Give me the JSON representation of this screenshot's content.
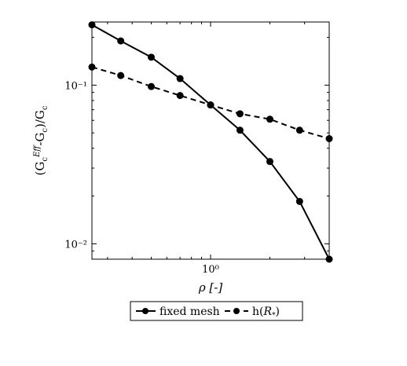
{
  "chart_data": {
    "type": "line",
    "xlabel": "ρ [-]",
    "ylabel": "(G_c^Eff-G_c)/G_c",
    "x_scale": "log",
    "y_scale": "log",
    "xlim": [
      0.25,
      4.0
    ],
    "ylim": [
      0.008,
      0.25
    ],
    "x_ticks": [
      {
        "value": 1,
        "label": "10⁰"
      }
    ],
    "y_ticks": [
      {
        "value": 0.01,
        "label": "10⁻²"
      },
      {
        "value": 0.1,
        "label": "10⁻¹"
      }
    ],
    "grid": false,
    "legend_position": "bottom-center-outside",
    "series": [
      {
        "name": "fixed mesh",
        "style": "solid",
        "color": "#000000",
        "x": [
          0.25,
          0.35,
          0.5,
          0.7,
          1.0,
          1.41,
          2.0,
          2.83,
          4.0
        ],
        "y": [
          0.24,
          0.19,
          0.15,
          0.11,
          0.075,
          0.052,
          0.033,
          0.0185,
          0.008
        ]
      },
      {
        "name": "h(R*)",
        "style": "dashed",
        "color": "#000000",
        "x": [
          0.25,
          0.35,
          0.5,
          0.7,
          1.0,
          1.41,
          2.0,
          2.83,
          4.0
        ],
        "y": [
          0.13,
          0.115,
          0.098,
          0.086,
          0.075,
          0.066,
          0.061,
          0.052,
          0.046
        ]
      }
    ]
  }
}
